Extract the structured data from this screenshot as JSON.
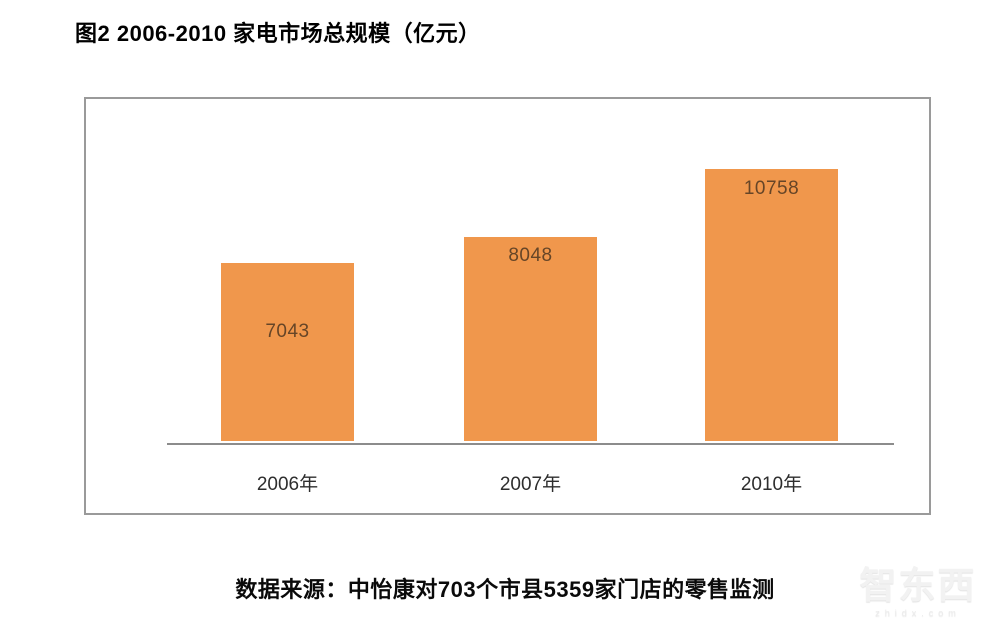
{
  "page": {
    "title": "图2 2006-2010 家电市场总规模（亿元）",
    "source_note": "数据来源：中怡康对703个市县5359家门店的零售监测",
    "watermark": {
      "logo": "智东西",
      "domain": "zhidx.com"
    }
  },
  "chart_data": {
    "type": "bar",
    "title": "图2 2006-2010 家电市场总规模（亿元）",
    "unit": "亿元",
    "categories": [
      "2006年",
      "2007年",
      "2010年"
    ],
    "values": [
      7043,
      8048,
      10758
    ],
    "value_labels": [
      "7043",
      "8048",
      "10758"
    ],
    "xlabel": "",
    "ylabel": "",
    "ylim": [
      0,
      11000
    ],
    "grid": false,
    "legend": false,
    "bar_color": "#F0974C",
    "value_label_color": "#664527",
    "axis_line_color": "#8c8c8c",
    "frame_border_color": "#9a9a9a",
    "source": "数据来源：中怡康对703个市县5359家门店的零售监测"
  }
}
